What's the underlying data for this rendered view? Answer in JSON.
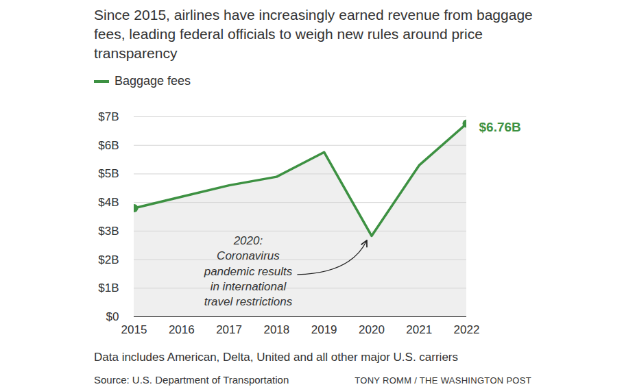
{
  "chart_data": {
    "type": "line",
    "title": "Since 2015, airlines have increasingly earned revenue from baggage fees, leading federal officials to weigh new rules around price transparency",
    "x": [
      2015,
      2016,
      2017,
      2018,
      2019,
      2020,
      2021,
      2022
    ],
    "series": [
      {
        "name": "Baggage fees",
        "color": "#3d9142",
        "marker": "endpoints",
        "values": [
          3.8,
          4.2,
          4.6,
          4.9,
          5.76,
          2.83,
          5.3,
          6.76
        ],
        "value_labels": [
          null,
          null,
          null,
          null,
          null,
          null,
          null,
          "$6.76B"
        ]
      }
    ],
    "data_labels": true,
    "xlim": [
      2015,
      2022
    ],
    "xticks": [
      2015,
      2016,
      2017,
      2018,
      2019,
      2020,
      2021,
      2022
    ],
    "ylim": [
      0,
      7
    ],
    "yticks": [
      {
        "value": 0,
        "label": "$0"
      },
      {
        "value": 1,
        "label": "$1B"
      },
      {
        "value": 2,
        "label": "$2B"
      },
      {
        "value": 3,
        "label": "$3B"
      },
      {
        "value": 4,
        "label": "$4B"
      },
      {
        "value": 5,
        "label": "$5B"
      },
      {
        "value": 6,
        "label": "$6B"
      },
      {
        "value": 7,
        "label": "$7B"
      }
    ],
    "grid": true,
    "legend": "top-left",
    "annotations": [
      {
        "x": 2020,
        "text": "2020:\nCoronavirus\npandemic results\nin international\ntravel restrictions"
      }
    ],
    "note": "Data includes American, Delta, United and all other major U.S. carriers",
    "source": "Source: U.S. Department of Transportation",
    "credit": "TONY ROMM / THE WASHINGTON POST"
  }
}
